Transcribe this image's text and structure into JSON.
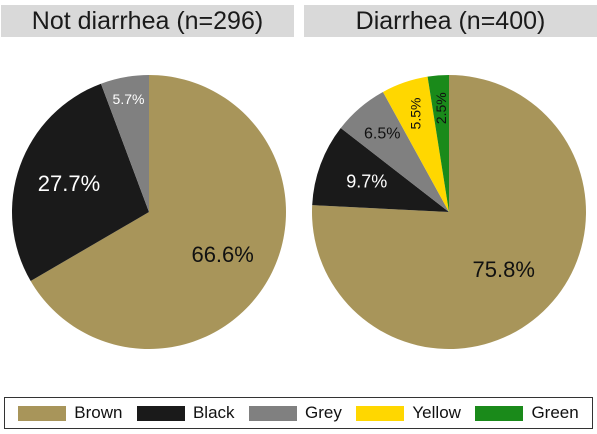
{
  "chart_data": [
    {
      "type": "pie",
      "title": "Not diarrhea (n=296)",
      "slices": [
        {
          "label": "Brown",
          "value": 66.6,
          "text": "66.6%",
          "color": "#a8955a"
        },
        {
          "label": "Black",
          "value": 27.7,
          "text": "27.7%",
          "color": "#1a1a1a"
        },
        {
          "label": "Grey",
          "value": 5.7,
          "text": "5.7%",
          "color": "#808080"
        }
      ]
    },
    {
      "type": "pie",
      "title": "Diarrhea (n=400)",
      "slices": [
        {
          "label": "Brown",
          "value": 75.8,
          "text": "75.8%",
          "color": "#a8955a"
        },
        {
          "label": "Black",
          "value": 9.7,
          "text": "9.7%",
          "color": "#1a1a1a"
        },
        {
          "label": "Grey",
          "value": 6.5,
          "text": "6.5%",
          "color": "#808080"
        },
        {
          "label": "Yellow",
          "value": 5.5,
          "text": "5.5%",
          "color": "#ffd700"
        },
        {
          "label": "Green",
          "value": 2.5,
          "text": "2.5%",
          "color": "#1a8a1a"
        }
      ]
    }
  ],
  "legend": [
    {
      "label": "Brown",
      "color": "#a8955a"
    },
    {
      "label": "Black",
      "color": "#1a1a1a"
    },
    {
      "label": "Grey",
      "color": "#808080"
    },
    {
      "label": "Yellow",
      "color": "#ffd700"
    },
    {
      "label": "Green",
      "color": "#1a8a1a"
    }
  ]
}
